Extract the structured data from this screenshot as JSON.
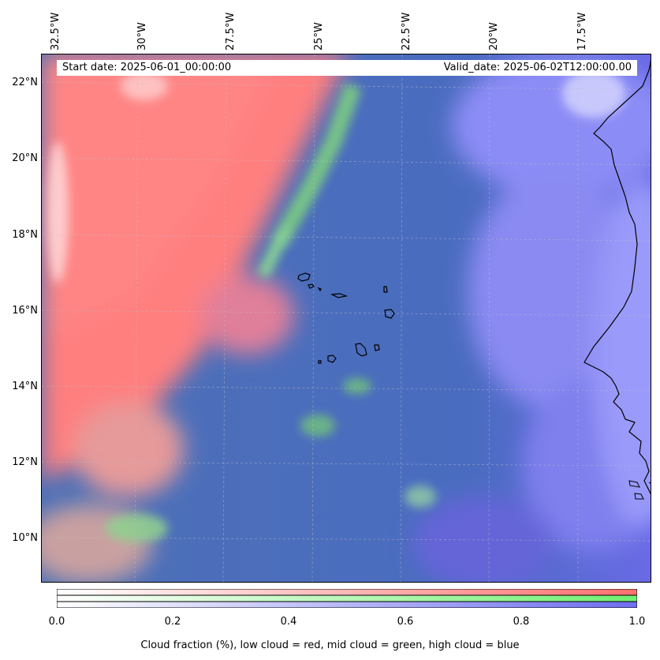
{
  "map": {
    "lon_labels": [
      "32.5°W",
      "30°W",
      "27.5°W",
      "25°W",
      "22.5°W",
      "20°W",
      "17.5°W"
    ],
    "lat_labels": [
      "22°N",
      "20°N",
      "18°N",
      "16°N",
      "14°N",
      "12°N",
      "10°N"
    ],
    "start_date": "Start date: 2025-06-01_00:00:00",
    "valid_date": "Valid_date: 2025-06-02T12:00:00.00",
    "colors": {
      "low_cloud": "#ff7f7f",
      "mid_cloud": "#7fe07f",
      "high_cloud": "#7f7fff",
      "sea_base": "#4a6fb8",
      "coastline": "#000000"
    }
  },
  "colorbar": {
    "ticks": [
      "0.0",
      "0.2",
      "0.4",
      "0.6",
      "0.8",
      "1.0"
    ],
    "tick_values": [
      0.0,
      0.2,
      0.4,
      0.6,
      0.8,
      1.0
    ],
    "range": [
      0.0,
      1.0
    ],
    "title": "Cloud fraction (%), low cloud = red, mid cloud = green, high cloud = blue",
    "bands": [
      {
        "name": "low",
        "color": "#ff6f6f"
      },
      {
        "name": "mid",
        "color": "#70ef70"
      },
      {
        "name": "high",
        "color": "#6e6ef0"
      }
    ]
  }
}
